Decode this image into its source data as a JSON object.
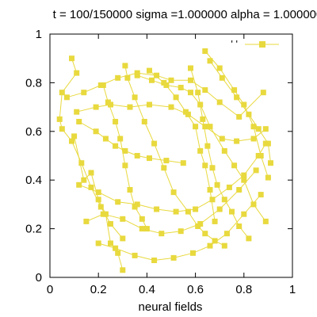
{
  "chart_data": {
    "type": "line",
    "title": "t = 100/150000 sigma =1.000000 alpha = 1.000000",
    "xlabel": "neural fields",
    "ylabel": "",
    "xlim": [
      0,
      1
    ],
    "ylim": [
      0,
      1
    ],
    "x_ticks": [
      "0",
      "0.2",
      "0.4",
      "0.6",
      "0.8",
      "1"
    ],
    "y_ticks": [
      "0",
      "0.2",
      "0.4",
      "0.6",
      "0.8",
      "1"
    ],
    "grid": false,
    "legend": {
      "position": "top-right",
      "entries": [
        "' '"
      ]
    },
    "series_color": "#e8d93e",
    "marker": "square",
    "series": [
      {
        "x": [
          0.09,
          0.11,
          0.05,
          0.04,
          0.05,
          0.09,
          0.13,
          0.17,
          0.21,
          0.25,
          0.3
        ],
        "y": [
          0.9,
          0.84,
          0.76,
          0.65,
          0.61,
          0.56,
          0.47,
          0.37,
          0.29,
          0.22,
          0.16
        ]
      },
      {
        "x": [
          0.12,
          0.19,
          0.23,
          0.27,
          0.31,
          0.36,
          0.41,
          0.48,
          0.55
        ],
        "y": [
          0.64,
          0.6,
          0.57,
          0.54,
          0.52,
          0.5,
          0.49,
          0.48,
          0.47
        ]
      },
      {
        "x": [
          0.1,
          0.14,
          0.17,
          0.2,
          0.23,
          0.25,
          0.28,
          0.3
        ],
        "y": [
          0.58,
          0.4,
          0.43,
          0.32,
          0.26,
          0.14,
          0.1,
          0.03
        ]
      },
      {
        "x": [
          0.22,
          0.24,
          0.27,
          0.29,
          0.31,
          0.33,
          0.35,
          0.38,
          0.4
        ],
        "y": [
          0.79,
          0.72,
          0.64,
          0.57,
          0.46,
          0.36,
          0.29,
          0.24,
          0.2
        ]
      },
      {
        "x": [
          0.31,
          0.32,
          0.35,
          0.39,
          0.43,
          0.47,
          0.51,
          0.57,
          0.61,
          0.64,
          0.68,
          0.72
        ],
        "y": [
          0.87,
          0.82,
          0.74,
          0.64,
          0.55,
          0.45,
          0.35,
          0.27,
          0.21,
          0.18,
          0.15,
          0.13
        ]
      },
      {
        "x": [
          0.36,
          0.42,
          0.48,
          0.54,
          0.58,
          0.62,
          0.66,
          0.72,
          0.76,
          0.8,
          0.84,
          0.89
        ],
        "y": [
          0.83,
          0.81,
          0.79,
          0.78,
          0.76,
          0.71,
          0.62,
          0.52,
          0.46,
          0.4,
          0.3,
          0.23
        ]
      },
      {
        "x": [
          0.41,
          0.47,
          0.52,
          0.56,
          0.6,
          0.62,
          0.64,
          0.66,
          0.68
        ],
        "y": [
          0.85,
          0.8,
          0.74,
          0.68,
          0.62,
          0.52,
          0.46,
          0.36,
          0.23
        ]
      },
      {
        "x": [
          0.58,
          0.61,
          0.63,
          0.65,
          0.67,
          0.69,
          0.72,
          0.75,
          0.78,
          0.82
        ],
        "y": [
          0.86,
          0.76,
          0.65,
          0.54,
          0.45,
          0.38,
          0.32,
          0.27,
          0.21,
          0.16
        ]
      },
      {
        "x": [
          0.64,
          0.7,
          0.76,
          0.8,
          0.84,
          0.87,
          0.9
        ],
        "y": [
          0.93,
          0.86,
          0.77,
          0.71,
          0.62,
          0.5,
          0.41
        ]
      },
      {
        "x": [
          0.66,
          0.71,
          0.77,
          0.82,
          0.86,
          0.9,
          0.91
        ],
        "y": [
          0.89,
          0.82,
          0.74,
          0.67,
          0.61,
          0.55,
          0.47
        ]
      },
      {
        "x": [
          0.07,
          0.14,
          0.21,
          0.28,
          0.36,
          0.44,
          0.5,
          0.58,
          0.64,
          0.7,
          0.78,
          0.88
        ],
        "y": [
          0.74,
          0.76,
          0.79,
          0.82,
          0.84,
          0.83,
          0.81,
          0.81,
          0.77,
          0.72,
          0.66,
          0.76
        ]
      },
      {
        "x": [
          0.11,
          0.19,
          0.25,
          0.33,
          0.41,
          0.5,
          0.57,
          0.64,
          0.71,
          0.77,
          0.84,
          0.89
        ],
        "y": [
          0.68,
          0.7,
          0.71,
          0.7,
          0.71,
          0.7,
          0.67,
          0.62,
          0.57,
          0.56,
          0.57,
          0.61
        ]
      },
      {
        "x": [
          0.12,
          0.2,
          0.28,
          0.36,
          0.44,
          0.52,
          0.6,
          0.67,
          0.74,
          0.8,
          0.86,
          0.89
        ],
        "y": [
          0.38,
          0.35,
          0.31,
          0.3,
          0.28,
          0.27,
          0.28,
          0.32,
          0.37,
          0.42,
          0.5,
          0.55
        ]
      },
      {
        "x": [
          0.15,
          0.22,
          0.3,
          0.38,
          0.46,
          0.54,
          0.62,
          0.7,
          0.78,
          0.85
        ],
        "y": [
          0.23,
          0.26,
          0.24,
          0.2,
          0.18,
          0.19,
          0.22,
          0.28,
          0.36,
          0.44
        ]
      },
      {
        "x": [
          0.2,
          0.27,
          0.35,
          0.43,
          0.51,
          0.59,
          0.66,
          0.73,
          0.8,
          0.87
        ],
        "y": [
          0.14,
          0.12,
          0.09,
          0.07,
          0.08,
          0.1,
          0.13,
          0.18,
          0.26,
          0.34
        ]
      }
    ]
  }
}
